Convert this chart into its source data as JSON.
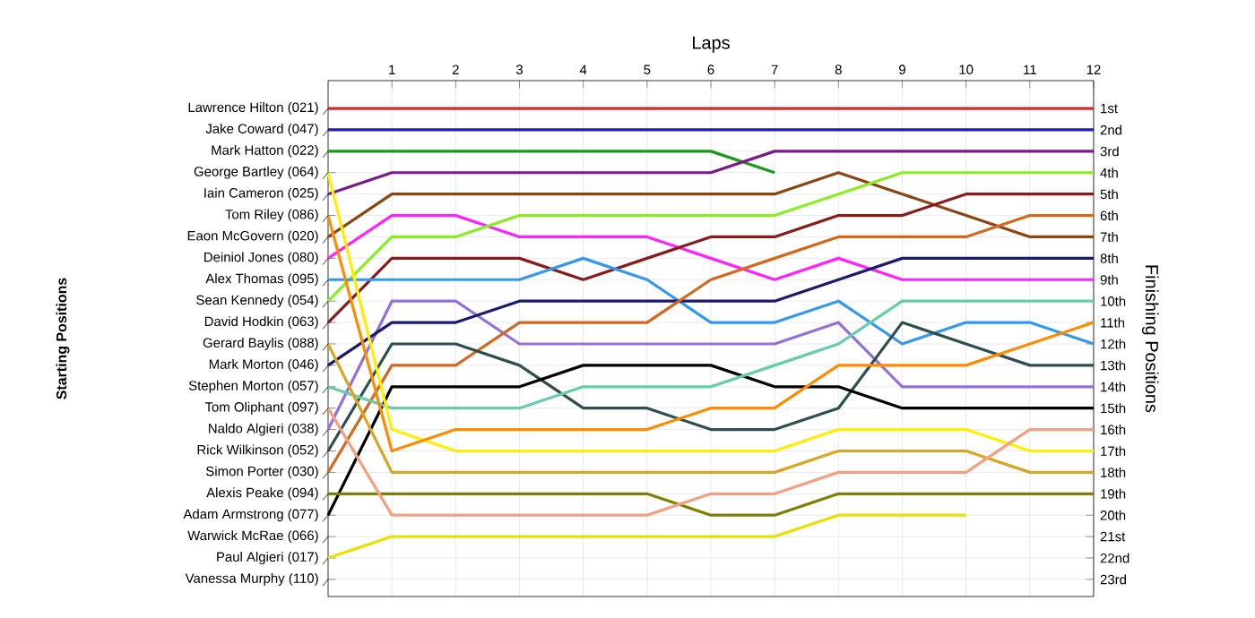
{
  "chart_data": {
    "type": "line",
    "xlabel": "Laps",
    "ylabel": "Finishing Positions",
    "x": [
      0,
      1,
      2,
      3,
      4,
      5,
      6,
      7,
      8,
      9,
      10,
      11,
      12
    ],
    "xlim": [
      0,
      12
    ],
    "xticks": [
      1,
      2,
      3,
      4,
      5,
      6,
      7,
      8,
      9,
      10,
      11,
      12
    ],
    "annotations": [
      "Starting Positions",
      "Lawrence Hilton (021)",
      "Jake Coward (047)",
      "Mark Hatton (022)",
      "George Bartley (064)",
      "Iain Cameron (025)",
      "Tom Riley (086)",
      "Eaon McGovern (020)",
      "Deiniol Jones (080)",
      "Alex Thomas (095)",
      "Sean Kennedy (054)",
      "David Hodkin (063)",
      "Gerard Baylis (088)",
      "Mark Morton (046)",
      "Stephen Morton (057)",
      "Tom Oliphant (097)",
      "Naldo Algieri (038)",
      "Rick Wilkinson (052)",
      "Simon Porter (030)",
      "Alexis Peake (094)",
      "Adam Armstrong (077)",
      "Warwick McRae (066)",
      "Paul Algieri (017)",
      "Vanessa Murphy (110)"
    ],
    "ylim": [
      23.8,
      -0.3
    ],
    "yticks": [
      {
        "value": 1,
        "label": "1st"
      },
      {
        "value": 2,
        "label": "2nd"
      },
      {
        "value": 3,
        "label": "3rd"
      },
      {
        "value": 4,
        "label": "4th"
      },
      {
        "value": 5,
        "label": "5th"
      },
      {
        "value": 6,
        "label": "6th"
      },
      {
        "value": 7,
        "label": "7th"
      },
      {
        "value": 8,
        "label": "8th"
      },
      {
        "value": 9,
        "label": "9th"
      },
      {
        "value": 10,
        "label": "10th"
      },
      {
        "value": 11,
        "label": "11th"
      },
      {
        "value": 12,
        "label": "12th"
      },
      {
        "value": 13,
        "label": "13th"
      },
      {
        "value": 14,
        "label": "14th"
      },
      {
        "value": 15,
        "label": "15th"
      },
      {
        "value": 16,
        "label": "16th"
      },
      {
        "value": 17,
        "label": "17th"
      },
      {
        "value": 18,
        "label": "18th"
      },
      {
        "value": 19,
        "label": "19th"
      },
      {
        "value": 20,
        "label": "20th"
      },
      {
        "value": 21,
        "label": "21st"
      },
      {
        "value": 22,
        "label": "22nd"
      },
      {
        "value": 23,
        "label": "23rd"
      }
    ],
    "grid": true,
    "marker": "none",
    "line_style": "solid",
    "series": [
      {
        "color": "#d42a2a",
        "values": [
          1,
          1,
          1,
          1,
          1,
          1,
          1,
          1,
          1,
          1,
          1,
          1,
          1
        ]
      },
      {
        "color": "#1a1abf",
        "values": [
          2,
          2,
          2,
          2,
          2,
          2,
          2,
          2,
          2,
          2,
          2,
          2,
          2
        ]
      },
      {
        "color": "#1a9a1a",
        "values": [
          3,
          3,
          3,
          3,
          3,
          3,
          3,
          4,
          null,
          null,
          null,
          null,
          null
        ]
      },
      {
        "color": "#7a1a8a",
        "values": [
          5,
          4,
          4,
          4,
          4,
          4,
          4,
          3,
          3,
          3,
          3,
          3,
          3
        ]
      },
      {
        "color": "#8b4513",
        "values": [
          7,
          5,
          5,
          5,
          5,
          5,
          5,
          5,
          4,
          5,
          6,
          7,
          7
        ]
      },
      {
        "color": "#ff22ff",
        "values": [
          8,
          6,
          6,
          7,
          7,
          7,
          8,
          9,
          8,
          9,
          9,
          9,
          9
        ]
      },
      {
        "color": "#88ee22",
        "values": [
          10,
          7,
          7,
          6,
          6,
          6,
          6,
          6,
          5,
          4,
          4,
          4,
          4
        ]
      },
      {
        "color": "#8b1a1a",
        "values": [
          11,
          8,
          8,
          8,
          9,
          8,
          7,
          7,
          6,
          6,
          5,
          5,
          5
        ]
      },
      {
        "color": "#3399ee",
        "values": [
          9,
          9,
          9,
          9,
          8,
          9,
          11,
          11,
          10,
          12,
          11,
          11,
          12
        ]
      },
      {
        "color": "#9370db",
        "values": [
          16,
          10,
          10,
          12,
          12,
          12,
          12,
          12,
          11,
          14,
          14,
          14,
          14
        ]
      },
      {
        "color": "#1a1a70",
        "values": [
          13,
          11,
          11,
          10,
          10,
          10,
          10,
          10,
          9,
          8,
          8,
          8,
          8
        ]
      },
      {
        "color": "#d2691e",
        "values": [
          18,
          13,
          13,
          11,
          11,
          11,
          9,
          8,
          7,
          7,
          7,
          6,
          6
        ]
      },
      {
        "color": "#2f4f4f",
        "values": [
          17,
          12,
          12,
          13,
          15,
          15,
          16,
          16,
          15,
          11,
          12,
          13,
          13
        ]
      },
      {
        "color": "#000000",
        "values": [
          20,
          14,
          14,
          14,
          13,
          13,
          13,
          14,
          14,
          15,
          15,
          15,
          15
        ]
      },
      {
        "color": "#66cdaa",
        "values": [
          14,
          15,
          15,
          15,
          14,
          14,
          14,
          13,
          12,
          10,
          10,
          10,
          10
        ]
      },
      {
        "color": "#ffee00",
        "values": [
          4,
          16,
          17,
          17,
          17,
          17,
          17,
          17,
          16,
          16,
          16,
          17,
          17
        ]
      },
      {
        "color": "#ff8c00",
        "values": [
          6,
          17,
          16,
          16,
          16,
          16,
          15,
          15,
          13,
          13,
          13,
          12,
          11
        ]
      },
      {
        "color": "#daa520",
        "values": [
          12,
          18,
          18,
          18,
          18,
          18,
          18,
          18,
          17,
          17,
          17,
          18,
          18
        ]
      },
      {
        "color": "#808000",
        "values": [
          19,
          19,
          19,
          19,
          19,
          19,
          20,
          20,
          19,
          19,
          19,
          19,
          19
        ]
      },
      {
        "color": "#f4a080",
        "values": [
          15,
          20,
          20,
          20,
          20,
          20,
          19,
          19,
          18,
          18,
          18,
          16,
          16
        ]
      },
      {
        "color": "#e8e000",
        "values": [
          22,
          21,
          21,
          21,
          21,
          21,
          21,
          21,
          20,
          20,
          20,
          null,
          null
        ]
      }
    ]
  }
}
